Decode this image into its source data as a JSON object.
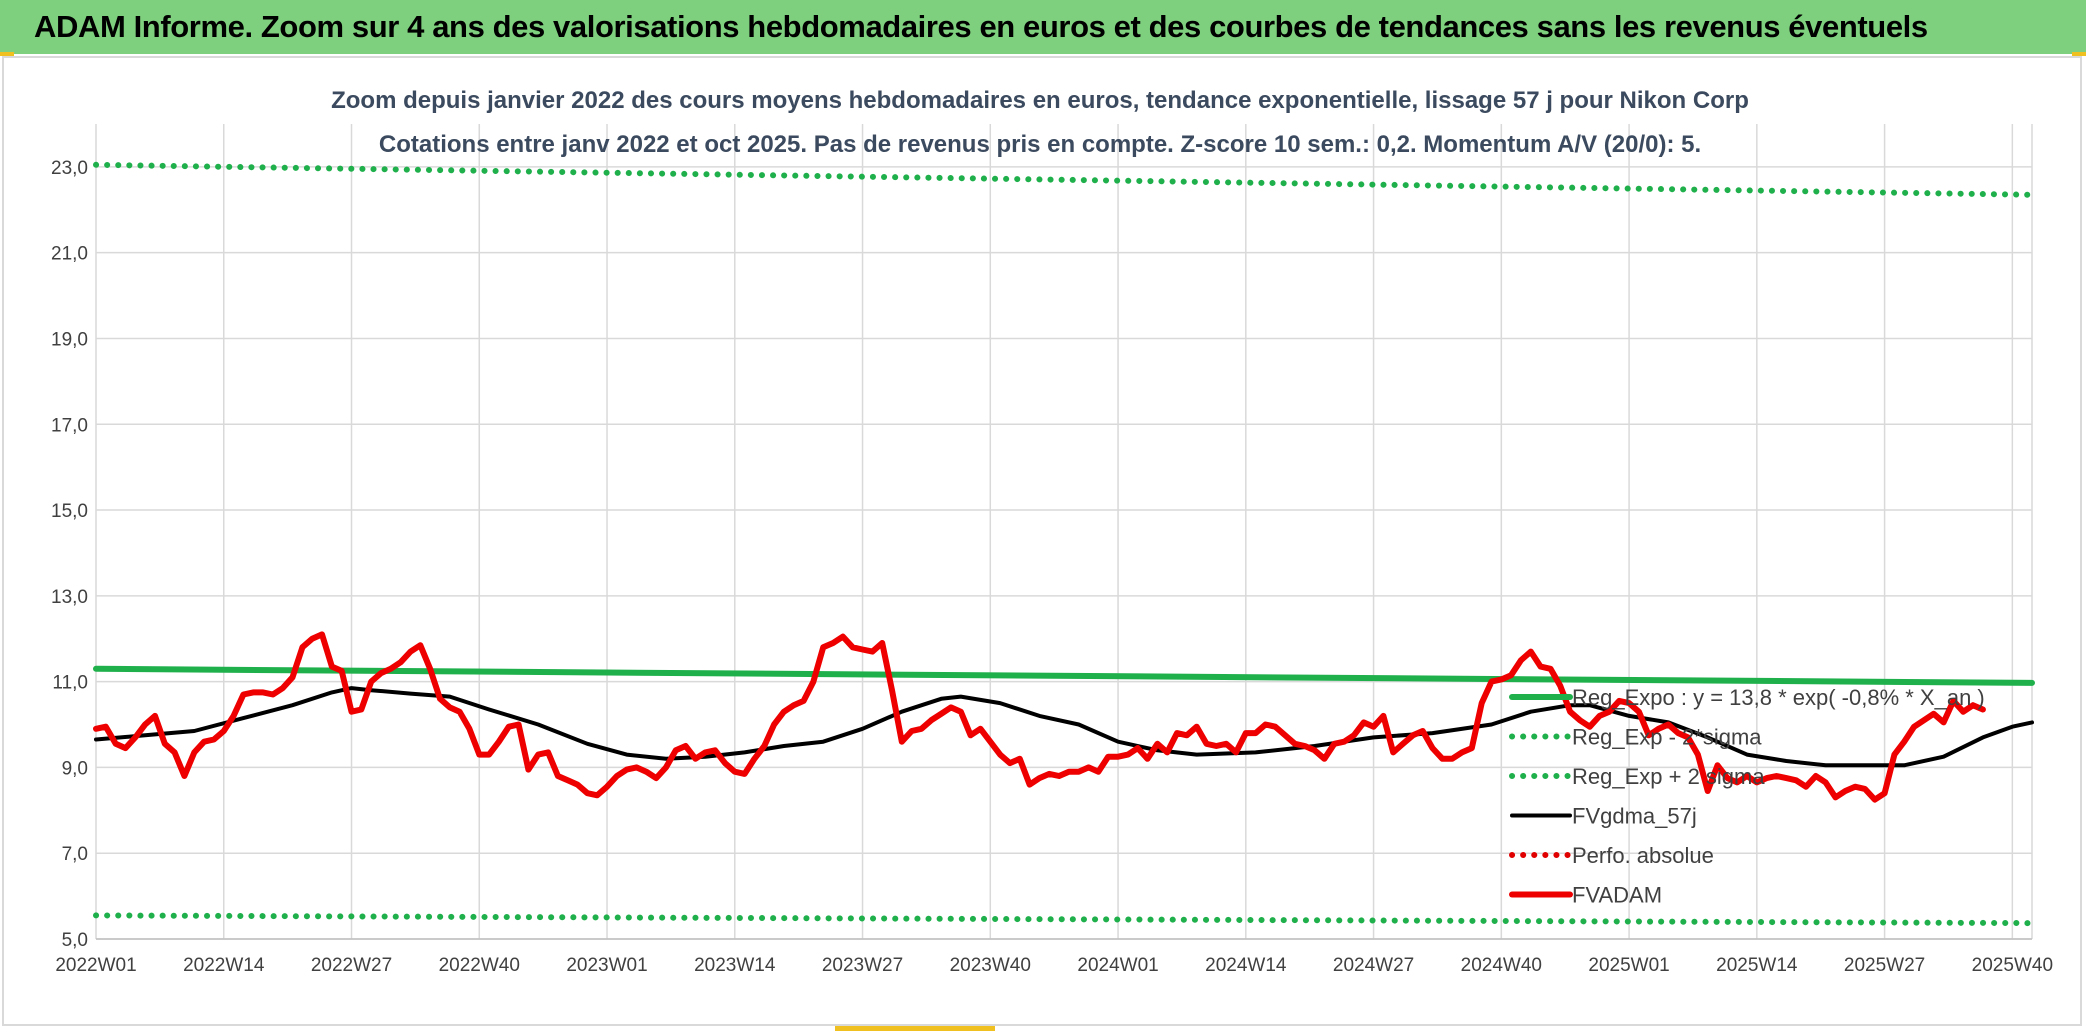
{
  "banner": {
    "title": "ADAM Informe. Zoom sur 4 ans des valorisations hebdomadaires en euros et des courbes de tendances sans les revenus éventuels"
  },
  "chart_data": {
    "type": "line",
    "title_lines": [
      "Zoom depuis janvier 2022 des cours moyens hebdomadaires en euros, tendance exponentielle, lissage 57 j pour Nikon Corp",
      "Cotations entre janv 2022 et oct 2025. Pas de revenus pris en compte. Z-score 10 sem.: 0,2. Momentum A/V (20/0): 5."
    ],
    "ylim": [
      5,
      24
    ],
    "yticks": [
      5,
      7,
      9,
      11,
      13,
      15,
      17,
      19,
      21,
      23
    ],
    "ytick_labels": [
      "5,0",
      "7,0",
      "9,0",
      "11,0",
      "13,0",
      "15,0",
      "17,0",
      "19,0",
      "21,0",
      "23,0"
    ],
    "x_count": 198,
    "xtick_index": [
      0,
      13,
      26,
      39,
      52,
      65,
      78,
      91,
      104,
      117,
      130,
      143,
      156,
      169,
      182,
      195
    ],
    "xtick_labels": [
      "2022W01",
      "2022W14",
      "2022W27",
      "2022W40",
      "2023W01",
      "2023W14",
      "2023W27",
      "2023W40",
      "2024W01",
      "2024W14",
      "2024W27",
      "2024W40",
      "2025W01",
      "2025W14",
      "2025W27",
      "2025W40"
    ],
    "grid": true,
    "legend_position": "center-right",
    "series": [
      {
        "name": "Reg_Expo : y = 13,8 * exp( -0,8% * X_an )",
        "color": "#1fb04c",
        "style": "solid-thick",
        "points": [
          [
            0,
            11.3
          ],
          [
            197,
            10.97
          ]
        ]
      },
      {
        "name": "Reg_Exp - 2*sigma",
        "color": "#1fb04c",
        "style": "dotted",
        "points": [
          [
            0,
            5.55
          ],
          [
            197,
            5.37
          ]
        ]
      },
      {
        "name": "Reg_Exp + 2 sigma",
        "color": "#1fb04c",
        "style": "dotted",
        "points": [
          [
            0,
            23.05
          ],
          [
            197,
            22.35
          ]
        ]
      },
      {
        "name": "FVgdma_57j",
        "color": "#000000",
        "style": "solid",
        "points": [
          [
            0,
            9.65
          ],
          [
            5,
            9.75
          ],
          [
            10,
            9.85
          ],
          [
            15,
            10.15
          ],
          [
            20,
            10.45
          ],
          [
            24,
            10.75
          ],
          [
            26,
            10.85
          ],
          [
            28,
            10.8
          ],
          [
            32,
            10.72
          ],
          [
            36,
            10.65
          ],
          [
            40,
            10.35
          ],
          [
            45,
            10.0
          ],
          [
            50,
            9.55
          ],
          [
            54,
            9.3
          ],
          [
            58,
            9.2
          ],
          [
            62,
            9.25
          ],
          [
            66,
            9.35
          ],
          [
            70,
            9.5
          ],
          [
            74,
            9.6
          ],
          [
            78,
            9.9
          ],
          [
            82,
            10.3
          ],
          [
            86,
            10.6
          ],
          [
            88,
            10.65
          ],
          [
            92,
            10.5
          ],
          [
            96,
            10.2
          ],
          [
            100,
            10.0
          ],
          [
            104,
            9.6
          ],
          [
            108,
            9.4
          ],
          [
            112,
            9.3
          ],
          [
            118,
            9.35
          ],
          [
            124,
            9.5
          ],
          [
            130,
            9.7
          ],
          [
            136,
            9.8
          ],
          [
            142,
            10.0
          ],
          [
            146,
            10.3
          ],
          [
            150,
            10.45
          ],
          [
            152,
            10.45
          ],
          [
            156,
            10.2
          ],
          [
            160,
            10.05
          ],
          [
            164,
            9.7
          ],
          [
            168,
            9.3
          ],
          [
            172,
            9.15
          ],
          [
            176,
            9.05
          ],
          [
            180,
            9.05
          ],
          [
            184,
            9.05
          ],
          [
            188,
            9.25
          ],
          [
            192,
            9.7
          ],
          [
            195,
            9.95
          ],
          [
            197,
            10.05
          ]
        ]
      },
      {
        "name": "Perfo. absolue",
        "color": "#e00000",
        "style": "dotted",
        "points": []
      },
      {
        "name": "FVADAM",
        "color": "#ee0000",
        "style": "solid-thick",
        "points": [
          [
            0,
            9.9
          ],
          [
            1,
            9.95
          ],
          [
            2,
            9.55
          ],
          [
            3,
            9.45
          ],
          [
            4,
            9.7
          ],
          [
            5,
            10.0
          ],
          [
            6,
            10.2
          ],
          [
            7,
            9.55
          ],
          [
            8,
            9.35
          ],
          [
            9,
            8.8
          ],
          [
            10,
            9.35
          ],
          [
            11,
            9.6
          ],
          [
            12,
            9.65
          ],
          [
            13,
            9.85
          ],
          [
            14,
            10.2
          ],
          [
            15,
            10.7
          ],
          [
            16,
            10.75
          ],
          [
            17,
            10.75
          ],
          [
            18,
            10.7
          ],
          [
            19,
            10.85
          ],
          [
            20,
            11.1
          ],
          [
            21,
            11.8
          ],
          [
            22,
            12.0
          ],
          [
            23,
            12.1
          ],
          [
            24,
            11.35
          ],
          [
            25,
            11.25
          ],
          [
            26,
            10.3
          ],
          [
            27,
            10.35
          ],
          [
            28,
            11.0
          ],
          [
            29,
            11.2
          ],
          [
            30,
            11.3
          ],
          [
            31,
            11.45
          ],
          [
            32,
            11.7
          ],
          [
            33,
            11.85
          ],
          [
            34,
            11.3
          ],
          [
            35,
            10.6
          ],
          [
            36,
            10.4
          ],
          [
            37,
            10.3
          ],
          [
            38,
            9.9
          ],
          [
            39,
            9.3
          ],
          [
            40,
            9.3
          ],
          [
            41,
            9.6
          ],
          [
            42,
            9.95
          ],
          [
            43,
            10.0
          ],
          [
            44,
            8.95
          ],
          [
            45,
            9.3
          ],
          [
            46,
            9.35
          ],
          [
            47,
            8.8
          ],
          [
            48,
            8.7
          ],
          [
            49,
            8.6
          ],
          [
            50,
            8.4
          ],
          [
            51,
            8.35
          ],
          [
            52,
            8.55
          ],
          [
            53,
            8.8
          ],
          [
            54,
            8.95
          ],
          [
            55,
            9.0
          ],
          [
            56,
            8.9
          ],
          [
            57,
            8.75
          ],
          [
            58,
            9.0
          ],
          [
            59,
            9.4
          ],
          [
            60,
            9.5
          ],
          [
            61,
            9.2
          ],
          [
            62,
            9.35
          ],
          [
            63,
            9.4
          ],
          [
            64,
            9.1
          ],
          [
            65,
            8.9
          ],
          [
            66,
            8.85
          ],
          [
            67,
            9.2
          ],
          [
            68,
            9.5
          ],
          [
            69,
            10.0
          ],
          [
            70,
            10.3
          ],
          [
            71,
            10.45
          ],
          [
            72,
            10.55
          ],
          [
            73,
            11.0
          ],
          [
            74,
            11.8
          ],
          [
            75,
            11.9
          ],
          [
            76,
            12.05
          ],
          [
            77,
            11.8
          ],
          [
            78,
            11.75
          ],
          [
            79,
            11.7
          ],
          [
            80,
            11.9
          ],
          [
            81,
            10.8
          ],
          [
            82,
            9.6
          ],
          [
            83,
            9.85
          ],
          [
            84,
            9.9
          ],
          [
            85,
            10.1
          ],
          [
            86,
            10.25
          ],
          [
            87,
            10.4
          ],
          [
            88,
            10.3
          ],
          [
            89,
            9.75
          ],
          [
            90,
            9.9
          ],
          [
            91,
            9.6
          ],
          [
            92,
            9.3
          ],
          [
            93,
            9.1
          ],
          [
            94,
            9.2
          ],
          [
            95,
            8.6
          ],
          [
            96,
            8.75
          ],
          [
            97,
            8.85
          ],
          [
            98,
            8.8
          ],
          [
            99,
            8.9
          ],
          [
            100,
            8.9
          ],
          [
            101,
            9.0
          ],
          [
            102,
            8.9
          ],
          [
            103,
            9.25
          ],
          [
            104,
            9.25
          ],
          [
            105,
            9.3
          ],
          [
            106,
            9.45
          ],
          [
            107,
            9.2
          ],
          [
            108,
            9.55
          ],
          [
            109,
            9.35
          ],
          [
            110,
            9.8
          ],
          [
            111,
            9.75
          ],
          [
            112,
            9.95
          ],
          [
            113,
            9.55
          ],
          [
            114,
            9.5
          ],
          [
            115,
            9.55
          ],
          [
            116,
            9.35
          ],
          [
            117,
            9.8
          ],
          [
            118,
            9.8
          ],
          [
            119,
            10.0
          ],
          [
            120,
            9.95
          ],
          [
            121,
            9.75
          ],
          [
            122,
            9.55
          ],
          [
            123,
            9.5
          ],
          [
            124,
            9.4
          ],
          [
            125,
            9.2
          ],
          [
            126,
            9.55
          ],
          [
            127,
            9.6
          ],
          [
            128,
            9.75
          ],
          [
            129,
            10.05
          ],
          [
            130,
            9.95
          ],
          [
            131,
            10.2
          ],
          [
            132,
            9.35
          ],
          [
            133,
            9.55
          ],
          [
            134,
            9.75
          ],
          [
            135,
            9.85
          ],
          [
            136,
            9.45
          ],
          [
            137,
            9.2
          ],
          [
            138,
            9.2
          ],
          [
            139,
            9.35
          ],
          [
            140,
            9.45
          ],
          [
            141,
            10.5
          ],
          [
            142,
            11.0
          ],
          [
            143,
            11.05
          ],
          [
            144,
            11.15
          ],
          [
            145,
            11.5
          ],
          [
            146,
            11.7
          ],
          [
            147,
            11.35
          ],
          [
            148,
            11.3
          ],
          [
            149,
            10.9
          ],
          [
            150,
            10.3
          ],
          [
            151,
            10.1
          ],
          [
            152,
            9.95
          ],
          [
            153,
            10.2
          ],
          [
            154,
            10.3
          ],
          [
            155,
            10.55
          ],
          [
            156,
            10.5
          ],
          [
            157,
            10.3
          ],
          [
            158,
            9.75
          ],
          [
            159,
            9.9
          ],
          [
            160,
            10.0
          ],
          [
            161,
            9.8
          ],
          [
            162,
            9.7
          ],
          [
            163,
            9.3
          ],
          [
            164,
            8.45
          ],
          [
            165,
            9.05
          ],
          [
            166,
            8.75
          ],
          [
            167,
            8.65
          ],
          [
            168,
            8.8
          ],
          [
            169,
            8.65
          ],
          [
            170,
            8.75
          ],
          [
            171,
            8.8
          ],
          [
            172,
            8.75
          ],
          [
            173,
            8.7
          ],
          [
            174,
            8.55
          ],
          [
            175,
            8.8
          ],
          [
            176,
            8.65
          ],
          [
            177,
            8.3
          ],
          [
            178,
            8.45
          ],
          [
            179,
            8.55
          ],
          [
            180,
            8.5
          ],
          [
            181,
            8.25
          ],
          [
            182,
            8.4
          ],
          [
            183,
            9.3
          ],
          [
            184,
            9.6
          ],
          [
            185,
            9.95
          ],
          [
            186,
            10.1
          ],
          [
            187,
            10.25
          ],
          [
            188,
            10.05
          ],
          [
            189,
            10.55
          ],
          [
            190,
            10.3
          ],
          [
            191,
            10.45
          ],
          [
            192,
            10.35
          ]
        ]
      }
    ]
  }
}
